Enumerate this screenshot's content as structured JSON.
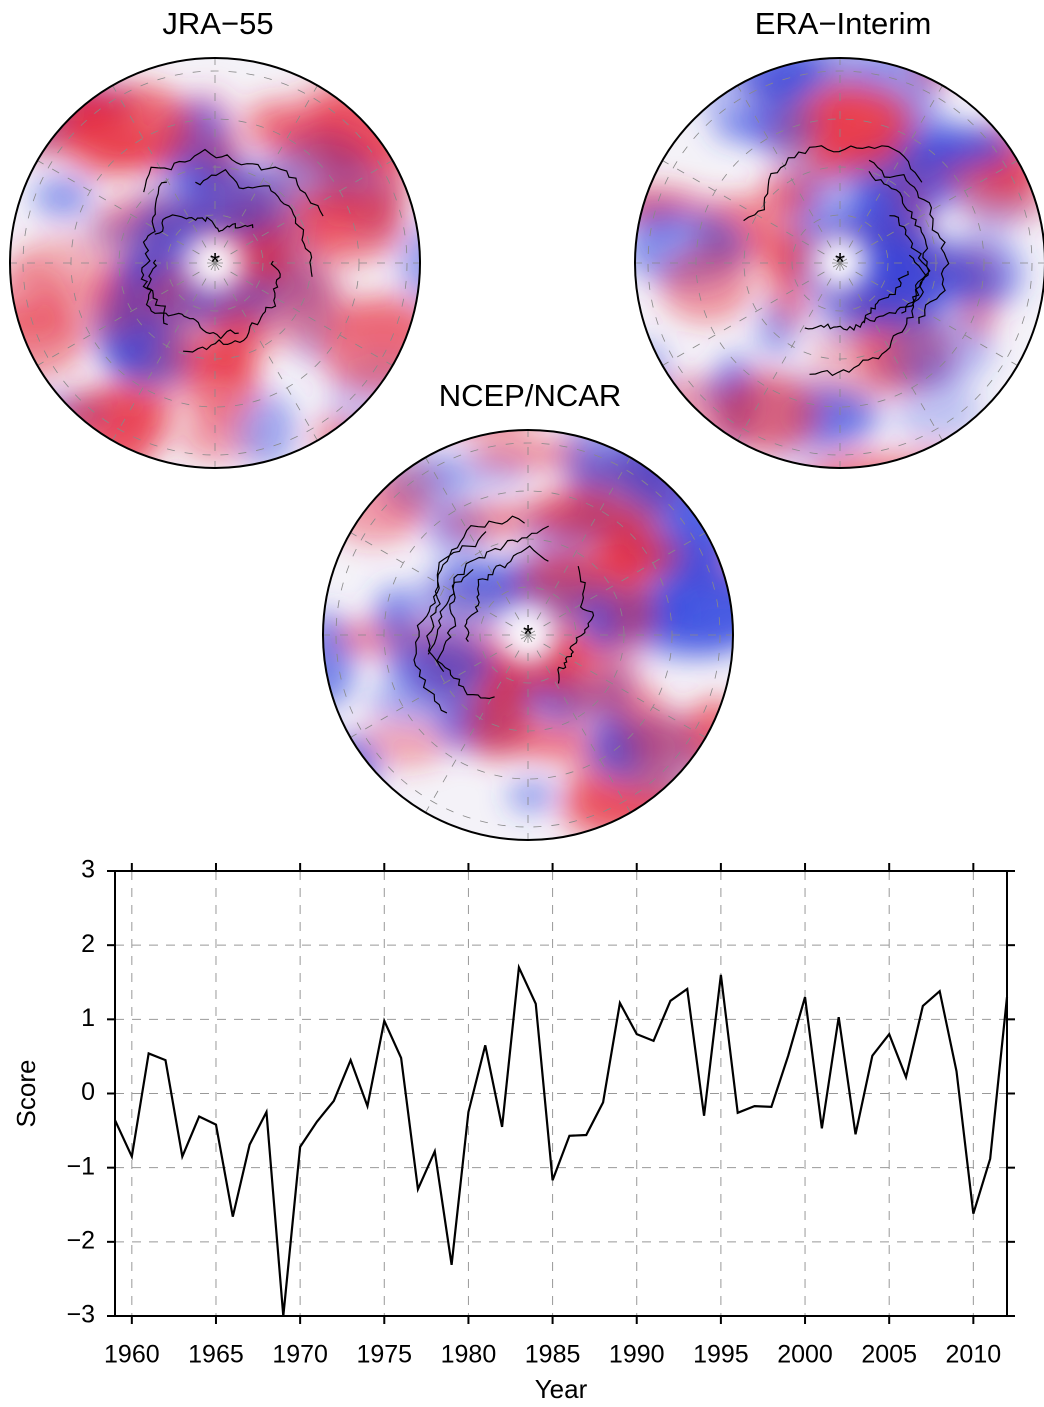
{
  "chart_data": [
    {
      "type": "map",
      "title": "JRA−55"
    },
    {
      "type": "map",
      "title": "ERA−Interim"
    },
    {
      "type": "map",
      "title": "NCEP/NCAR"
    },
    {
      "type": "line",
      "x": [
        1959,
        1960,
        1961,
        1962,
        1963,
        1964,
        1965,
        1966,
        1967,
        1968,
        1969,
        1970,
        1971,
        1972,
        1973,
        1974,
        1975,
        1976,
        1977,
        1978,
        1979,
        1980,
        1981,
        1982,
        1983,
        1984,
        1985,
        1986,
        1987,
        1988,
        1989,
        1990,
        1991,
        1992,
        1993,
        1994,
        1995,
        1996,
        1997,
        1998,
        1999,
        2000,
        2001,
        2002,
        2003,
        2004,
        2005,
        2006,
        2007,
        2008,
        2009,
        2010,
        2011,
        2012
      ],
      "values": [
        -0.36,
        -0.85,
        0.54,
        0.45,
        -0.85,
        -0.31,
        -0.42,
        -1.66,
        -0.69,
        -0.25,
        -3.0,
        -0.72,
        -0.38,
        -0.1,
        0.45,
        -0.17,
        0.98,
        0.48,
        -1.29,
        -0.78,
        -2.31,
        -0.25,
        0.65,
        -0.45,
        1.7,
        1.21,
        -1.17,
        -0.57,
        -0.56,
        -0.12,
        1.22,
        0.8,
        0.71,
        1.25,
        1.41,
        -0.3,
        1.6,
        -0.26,
        -0.17,
        -0.18,
        0.51,
        1.3,
        -0.47,
        1.03,
        -0.55,
        0.51,
        0.8,
        0.22,
        1.18,
        1.38,
        0.3,
        -1.62,
        -0.88,
        1.3
      ],
      "color": "#000000",
      "xlabel": "Year",
      "ylabel": "Score",
      "xlim": [
        1959,
        2012
      ],
      "xticks": [
        1960,
        1965,
        1970,
        1975,
        1980,
        1985,
        1990,
        1995,
        2000,
        2005,
        2010
      ],
      "ylim": [
        -3,
        3
      ],
      "yticks": [
        {
          "value": -3,
          "label": "−3"
        },
        {
          "value": -2,
          "label": "−2"
        },
        {
          "value": -1,
          "label": "−1"
        },
        0,
        1,
        2,
        3
      ],
      "grid": true
    }
  ]
}
